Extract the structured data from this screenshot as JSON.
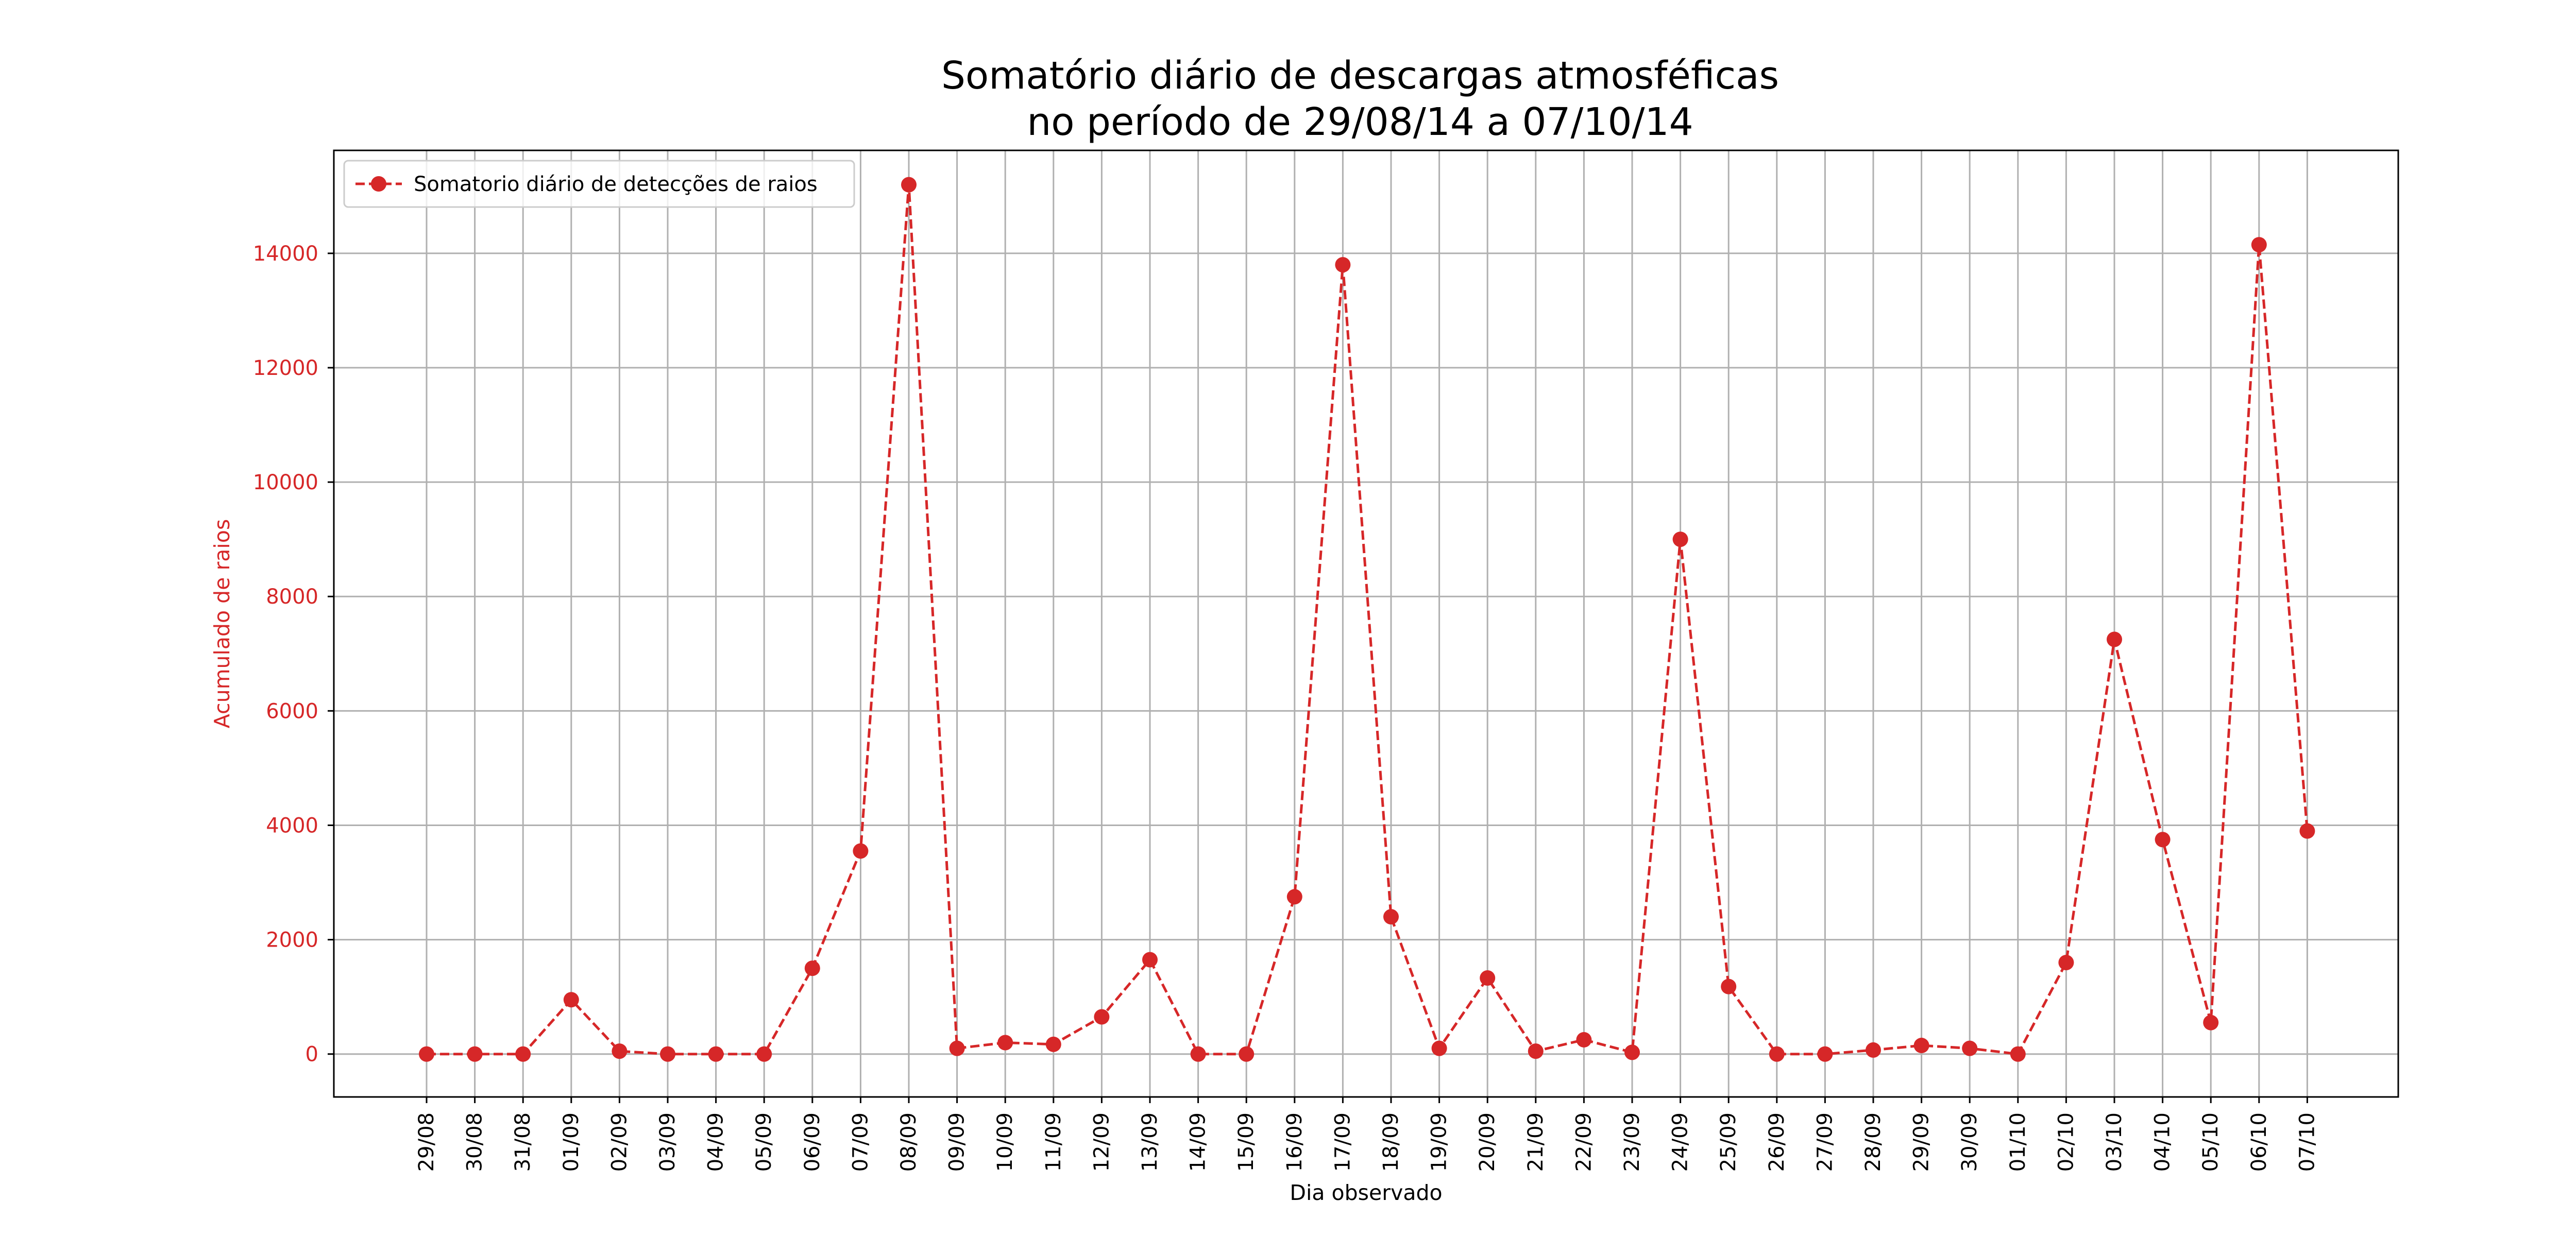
{
  "chart_data": {
    "type": "line",
    "title": [
      "Somatório diário de descargas atmosféficas",
      "no período de 29/08/14 a 07/10/14"
    ],
    "xlabel": "Dia observado",
    "ylabel": "Acumulado de raios",
    "categories": [
      "29/08",
      "30/08",
      "31/08",
      "01/09",
      "02/09",
      "03/09",
      "04/09",
      "05/09",
      "06/09",
      "07/09",
      "08/09",
      "09/09",
      "10/09",
      "11/09",
      "12/09",
      "13/09",
      "14/09",
      "15/09",
      "16/09",
      "17/09",
      "18/09",
      "19/09",
      "20/09",
      "21/09",
      "22/09",
      "23/09",
      "24/09",
      "25/09",
      "26/09",
      "27/09",
      "28/09",
      "29/09",
      "30/09",
      "01/10",
      "02/10",
      "03/10",
      "04/10",
      "05/10",
      "06/10",
      "07/10"
    ],
    "series": [
      {
        "name": "Somatorio diário de detecções de raios",
        "values": [
          0,
          0,
          0,
          950,
          50,
          0,
          0,
          0,
          1500,
          3550,
          15200,
          100,
          200,
          170,
          650,
          1650,
          0,
          0,
          2750,
          13800,
          2400,
          100,
          1330,
          50,
          250,
          30,
          9000,
          1180,
          0,
          0,
          70,
          150,
          100,
          0,
          1600,
          7250,
          3750,
          550,
          14150,
          3900
        ]
      }
    ],
    "ylim": [
      -750,
      15800
    ],
    "yticks": [
      0,
      2000,
      4000,
      6000,
      8000,
      10000,
      12000,
      14000
    ],
    "grid": true,
    "legend_position": "top-left",
    "colors": {
      "series": "#d62728",
      "axis_label": "#d62728",
      "grid": "#b0b0b0",
      "frame": "#000000"
    }
  }
}
